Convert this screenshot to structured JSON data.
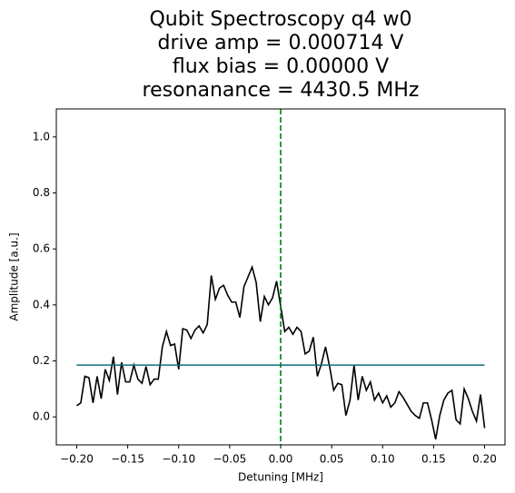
{
  "chart_data": {
    "type": "line",
    "title_lines": [
      "Qubit Spectroscopy q4 w0",
      "drive amp = 0.000714 V",
      "flux bias = 0.00000 V",
      "resonanance = 4430.5 MHz"
    ],
    "xlabel": "Detuning [MHz]",
    "ylabel": "Amplitude [a.u.]",
    "xlim": [
      -0.22,
      0.22
    ],
    "ylim": [
      -0.1,
      1.1
    ],
    "xticks": [
      {
        "value": -0.2,
        "label": "−0.20"
      },
      {
        "value": -0.15,
        "label": "−0.15"
      },
      {
        "value": -0.1,
        "label": "−0.10"
      },
      {
        "value": -0.05,
        "label": "−0.05"
      },
      {
        "value": 0,
        "label": "0.00"
      },
      {
        "value": 0.05,
        "label": "0.05"
      },
      {
        "value": 0.1,
        "label": "0.10"
      },
      {
        "value": 0.15,
        "label": "0.15"
      },
      {
        "value": 0.2,
        "label": "0.20"
      }
    ],
    "yticks": [
      {
        "value": 0,
        "label": "0.0"
      },
      0.2,
      0.4,
      0.6,
      0.8,
      {
        "value": 1,
        "label": "1.0"
      }
    ],
    "series": [
      {
        "color": "#000000",
        "x": [
          -0.2,
          -0.196,
          -0.192,
          -0.188,
          -0.184,
          -0.18,
          -0.176,
          -0.172,
          -0.168,
          -0.164,
          -0.16,
          -0.156,
          -0.152,
          -0.148,
          -0.144,
          -0.14,
          -0.136,
          -0.132,
          -0.128,
          -0.124,
          -0.12,
          -0.116,
          -0.112,
          -0.108,
          -0.104,
          -0.1,
          -0.096,
          -0.092,
          -0.088,
          -0.084,
          -0.08,
          -0.076,
          -0.072,
          -0.068,
          -0.064,
          -0.06,
          -0.056,
          -0.052,
          -0.048,
          -0.044,
          -0.04,
          -0.036,
          -0.032,
          -0.028,
          -0.024,
          -0.02,
          -0.016,
          -0.012,
          -0.008,
          -0.004,
          0,
          0.004,
          0.008,
          0.012,
          0.016,
          0.02,
          0.024,
          0.028,
          0.032,
          0.036,
          0.04,
          0.044,
          0.048,
          0.052,
          0.056,
          0.06,
          0.064,
          0.068,
          0.072,
          0.076,
          0.08,
          0.084,
          0.088,
          0.092,
          0.096,
          0.1,
          0.104,
          0.108,
          0.112,
          0.116,
          0.12,
          0.124,
          0.128,
          0.132,
          0.136,
          0.14,
          0.144,
          0.148,
          0.152,
          0.156,
          0.16,
          0.164,
          0.168,
          0.172,
          0.176,
          0.18,
          0.184,
          0.188,
          0.192,
          0.196,
          0.2
        ],
        "values": [
          0.04,
          0.05,
          0.145,
          0.14,
          0.05,
          0.145,
          0.065,
          0.17,
          0.13,
          0.215,
          0.08,
          0.195,
          0.125,
          0.125,
          0.185,
          0.135,
          0.12,
          0.18,
          0.115,
          0.135,
          0.135,
          0.25,
          0.305,
          0.255,
          0.26,
          0.17,
          0.315,
          0.31,
          0.28,
          0.31,
          0.325,
          0.3,
          0.33,
          0.505,
          0.42,
          0.46,
          0.47,
          0.435,
          0.41,
          0.41,
          0.355,
          0.465,
          0.5,
          0.535,
          0.48,
          0.34,
          0.43,
          0.4,
          0.425,
          0.485,
          0.395,
          0.305,
          0.32,
          0.295,
          0.32,
          0.305,
          0.225,
          0.235,
          0.285,
          0.145,
          0.19,
          0.25,
          0.18,
          0.095,
          0.12,
          0.115,
          0.005,
          0.06,
          0.185,
          0.06,
          0.145,
          0.095,
          0.125,
          0.06,
          0.085,
          0.05,
          0.075,
          0.035,
          0.05,
          0.09,
          0.07,
          0.045,
          0.02,
          0.005,
          -0.005,
          0.05,
          0.05,
          -0.01,
          -0.08,
          0.005,
          0.06,
          0.085,
          0.095,
          -0.01,
          -0.025,
          0.1,
          0.065,
          0.02,
          -0.015,
          0.08,
          -0.04
        ]
      },
      {
        "color": "#0e6b80",
        "x": [
          -0.2,
          0.2
        ],
        "values": [
          0.185,
          0.185
        ]
      }
    ],
    "vline": {
      "x": 0,
      "color": "#008000"
    }
  }
}
